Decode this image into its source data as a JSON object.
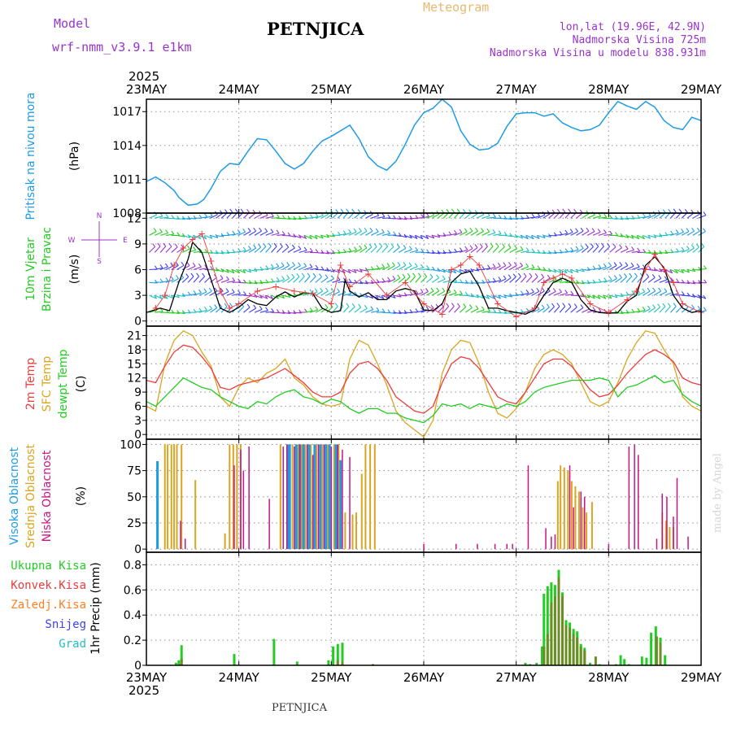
{
  "header": {
    "model_label": "Model",
    "model_name": "wrf-nmm_v3.9.1  e1km",
    "location": "PETNJICA",
    "product": "Meteogram",
    "coords": "lon,lat (19.96E, 42.9N)",
    "elevation": "Nadmorska Visina 725m",
    "model_elevation": "Nadmorska Visina u modelu 838.931m",
    "year": "2025"
  },
  "footer": {
    "location": "PETNJICA",
    "credit": "made by Angel"
  },
  "colors": {
    "pressure": "#1e9be6",
    "temp2m": "#ee3b3b",
    "sfc_temp": "#daa520",
    "dewpt": "#22cc22",
    "high_cloud": "#1e9be6",
    "mid_cloud": "#daa520",
    "low_cloud": "#c71585",
    "total_precip": "#22cc22",
    "conv_precip": "#ee3b3b",
    "freezing_precip": "#ff7f24",
    "snow": "#4040ee",
    "hail": "#20c0c0",
    "title_purple": "#9933cc",
    "meteogram_orange": "#e8b86d"
  },
  "time_axis": {
    "days": [
      "23MAY",
      "24MAY",
      "25MAY",
      "26MAY",
      "27MAY",
      "28MAY",
      "29MAY"
    ]
  },
  "panels": {
    "pressure": {
      "labels": [
        "Pritisak na nivou mora",
        "(hPa)"
      ],
      "yticks": [
        1008,
        1011,
        1014,
        1017
      ],
      "ylim": [
        1008,
        1018.1
      ]
    },
    "wind": {
      "labels": [
        "10m Vjetar",
        "Brzina i Pravac",
        "(m/s)"
      ],
      "compass": [
        "N",
        "S",
        "W",
        "E"
      ],
      "yticks": [
        0,
        3,
        6,
        9,
        12
      ],
      "ylim": [
        -0.6,
        12.6
      ]
    },
    "temperature": {
      "labels": [
        "2m Temp",
        "SFC Temp",
        "dewpt Temp",
        "(C)"
      ],
      "yticks": [
        0,
        3,
        6,
        9,
        12,
        15,
        18,
        21
      ],
      "ylim": [
        -1,
        23
      ]
    },
    "cloud": {
      "labels": [
        "Visoka Oblacnost",
        "Srednja Oblacnost",
        "Niska Oblacnost",
        "(%)"
      ],
      "yticks": [
        0,
        25,
        50,
        75,
        100
      ],
      "ylim": [
        -3,
        105
      ]
    },
    "precip": {
      "labels": [
        "1hr Precip (mm)"
      ],
      "legend": [
        "Ukupna Kisa",
        "Konvek.Kisa",
        "Zaledj.Kisa",
        "Snijeg",
        "Grad"
      ],
      "yticks": [
        0,
        0.2,
        0.4,
        0.6,
        0.8
      ],
      "ylim": [
        0,
        0.9
      ]
    }
  },
  "chart_data": {
    "type": "line",
    "title": "PETNJICA",
    "x_range_days": [
      0,
      6
    ],
    "pressure": {
      "name": "Pritisak na nivou mora",
      "x": [
        0,
        0.1,
        0.2,
        0.3,
        0.35,
        0.45,
        0.55,
        0.62,
        0.7,
        0.8,
        0.9,
        1.0,
        1.1,
        1.2,
        1.3,
        1.4,
        1.5,
        1.6,
        1.7,
        1.8,
        1.9,
        2.0,
        2.1,
        2.2,
        2.3,
        2.4,
        2.5,
        2.6,
        2.7,
        2.8,
        2.9,
        3.0,
        3.1,
        3.2,
        3.3,
        3.4,
        3.5,
        3.6,
        3.7,
        3.8,
        3.9,
        4.0,
        4.1,
        4.2,
        4.3,
        4.4,
        4.5,
        4.6,
        4.7,
        4.8,
        4.9,
        5.0,
        5.1,
        5.2,
        5.3,
        5.4,
        5.5,
        5.6,
        5.7,
        5.8,
        5.9,
        6.0
      ],
      "y": [
        1010.8,
        1011.2,
        1010.7,
        1010.0,
        1009.4,
        1008.7,
        1008.8,
        1009.2,
        1010.2,
        1011.7,
        1012.4,
        1012.3,
        1013.5,
        1014.6,
        1014.5,
        1013.5,
        1012.4,
        1011.9,
        1012.4,
        1013.5,
        1014.4,
        1014.8,
        1015.3,
        1015.8,
        1014.6,
        1013.0,
        1012.2,
        1011.8,
        1012.6,
        1014.1,
        1015.8,
        1016.9,
        1017.3,
        1018.1,
        1017.4,
        1015.3,
        1014.1,
        1013.6,
        1013.7,
        1014.2,
        1015.7,
        1016.8,
        1016.9,
        1016.9,
        1016.6,
        1016.8,
        1016.0,
        1015.6,
        1015.3,
        1015.4,
        1015.8,
        1016.9,
        1017.9,
        1017.5,
        1017.2,
        1017.9,
        1017.4,
        1016.2,
        1015.6,
        1015.4,
        1016.5,
        1016.2
      ]
    },
    "wind_speed": {
      "x": [
        0,
        0.15,
        0.25,
        0.35,
        0.45,
        0.5,
        0.6,
        0.7,
        0.8,
        0.9,
        1.0,
        1.1,
        1.2,
        1.3,
        1.4,
        1.5,
        1.6,
        1.7,
        1.8,
        1.9,
        2.0,
        2.1,
        2.15,
        2.2,
        2.3,
        2.4,
        2.5,
        2.6,
        2.7,
        2.8,
        2.9,
        3.0,
        3.1,
        3.2,
        3.3,
        3.4,
        3.5,
        3.6,
        3.7,
        3.8,
        3.9,
        4.0,
        4.1,
        4.2,
        4.3,
        4.4,
        4.5,
        4.6,
        4.7,
        4.8,
        4.9,
        5.0,
        5.1,
        5.2,
        5.3,
        5.4,
        5.5,
        5.6,
        5.7,
        5.8,
        5.9,
        6.0
      ],
      "y": [
        1.0,
        1.5,
        1.2,
        4.5,
        7.2,
        9.2,
        8.0,
        4.8,
        1.5,
        1.0,
        1.6,
        2.5,
        2.0,
        1.8,
        2.8,
        3.4,
        2.8,
        3.3,
        3.2,
        1.5,
        1.0,
        1.2,
        4.8,
        3.5,
        2.8,
        3.3,
        2.5,
        2.5,
        3.5,
        3.8,
        3.5,
        1.3,
        1.2,
        2.0,
        4.5,
        5.5,
        5.8,
        4.0,
        1.5,
        1.5,
        1.2,
        1.0,
        0.8,
        1.3,
        3.0,
        4.5,
        5.0,
        4.5,
        2.5,
        1.3,
        1.0,
        0.9,
        1.0,
        2.3,
        3.0,
        6.5,
        7.5,
        6.2,
        3.0,
        1.5,
        1.0,
        1.2
      ]
    },
    "wind_gust": {
      "x": [
        0.1,
        0.2,
        0.3,
        0.4,
        0.5,
        0.6,
        0.7,
        0.8,
        0.9,
        1.0,
        1.2,
        1.4,
        1.6,
        1.8,
        2.0,
        2.1,
        2.2,
        2.4,
        2.6,
        2.8,
        3.0,
        3.2,
        3.3,
        3.4,
        3.5,
        3.6,
        3.8,
        4.0,
        4.2,
        4.3,
        4.4,
        4.5,
        4.6,
        4.8,
        5.0,
        5.2,
        5.3,
        5.4,
        5.5,
        5.6,
        5.7,
        5.8,
        6.0
      ],
      "y": [
        1.5,
        3.0,
        6.5,
        8.5,
        9.5,
        10.2,
        7.0,
        3.5,
        1.5,
        2.0,
        3.5,
        4.0,
        3.5,
        3.2,
        2.0,
        6.5,
        4.0,
        5.5,
        3.0,
        4.5,
        2.0,
        0.8,
        6.0,
        6.5,
        7.5,
        6.5,
        2.0,
        0.5,
        1.5,
        4.5,
        5.0,
        5.5,
        5.0,
        2.0,
        1.0,
        2.5,
        3.5,
        6.0,
        7.8,
        6.0,
        4.5,
        2.0,
        1.0
      ]
    },
    "temp_2m": {
      "name": "2m Temp",
      "x": [
        0,
        0.1,
        0.2,
        0.3,
        0.4,
        0.5,
        0.6,
        0.7,
        0.8,
        0.9,
        1.0,
        1.1,
        1.2,
        1.3,
        1.4,
        1.5,
        1.6,
        1.7,
        1.8,
        1.9,
        2.0,
        2.1,
        2.2,
        2.3,
        2.4,
        2.5,
        2.6,
        2.7,
        2.8,
        2.9,
        3.0,
        3.1,
        3.2,
        3.3,
        3.4,
        3.5,
        3.6,
        3.7,
        3.8,
        3.9,
        4.0,
        4.1,
        4.2,
        4.3,
        4.4,
        4.5,
        4.6,
        4.7,
        4.8,
        4.9,
        5.0,
        5.1,
        5.2,
        5.3,
        5.4,
        5.5,
        5.6,
        5.7,
        5.8,
        5.9,
        6.0
      ],
      "y": [
        11.5,
        11.0,
        14.5,
        17.5,
        19.0,
        18.5,
        16.5,
        14.0,
        10.0,
        9.5,
        10.5,
        11.0,
        11.5,
        12.0,
        13.0,
        14.0,
        12.5,
        11.0,
        9.0,
        8.0,
        8.0,
        9.0,
        13.0,
        15.0,
        15.5,
        14.0,
        11.5,
        8.0,
        6.5,
        5.0,
        4.5,
        6.0,
        11.0,
        15.0,
        16.5,
        16.0,
        14.0,
        11.0,
        8.0,
        7.0,
        6.5,
        9.0,
        12.0,
        15.0,
        16.0,
        16.0,
        14.5,
        12.0,
        9.5,
        8.0,
        8.5,
        10.5,
        13.0,
        15.0,
        17.0,
        18.0,
        17.0,
        15.5,
        12.0,
        11.0,
        10.5
      ]
    },
    "sfc_temp": {
      "name": "SFC Temp",
      "x": [
        0,
        0.1,
        0.2,
        0.3,
        0.4,
        0.5,
        0.6,
        0.7,
        0.8,
        0.9,
        1.0,
        1.1,
        1.2,
        1.3,
        1.4,
        1.5,
        1.6,
        1.7,
        1.8,
        1.9,
        2.0,
        2.1,
        2.2,
        2.3,
        2.4,
        2.5,
        2.6,
        2.7,
        2.8,
        2.9,
        3.0,
        3.1,
        3.2,
        3.3,
        3.4,
        3.5,
        3.6,
        3.7,
        3.8,
        3.9,
        4.0,
        4.1,
        4.2,
        4.3,
        4.4,
        4.5,
        4.6,
        4.7,
        4.8,
        4.9,
        5.0,
        5.1,
        5.2,
        5.3,
        5.4,
        5.5,
        5.6,
        5.7,
        5.8,
        5.9,
        6.0
      ],
      "y": [
        6.0,
        5.0,
        15.0,
        20.0,
        22.0,
        21.0,
        17.5,
        14.5,
        8.0,
        6.0,
        10.0,
        12.0,
        11.0,
        13.0,
        14.0,
        16.0,
        12.0,
        10.5,
        8.0,
        6.5,
        6.0,
        6.5,
        16.0,
        20.0,
        19.0,
        15.0,
        10.5,
        5.0,
        2.5,
        1.0,
        -0.5,
        3.0,
        13.0,
        18.0,
        20.0,
        19.5,
        15.0,
        9.0,
        4.5,
        3.5,
        5.5,
        9.0,
        14.0,
        17.0,
        18.0,
        17.0,
        15.0,
        11.0,
        7.0,
        6.0,
        7.0,
        11.0,
        16.0,
        19.5,
        22.0,
        21.5,
        18.0,
        15.0,
        8.0,
        6.0,
        5.0
      ]
    },
    "dewpoint": {
      "name": "dewpt Temp",
      "x": [
        0,
        0.1,
        0.2,
        0.3,
        0.4,
        0.5,
        0.6,
        0.7,
        0.8,
        0.9,
        1.0,
        1.1,
        1.2,
        1.3,
        1.4,
        1.5,
        1.6,
        1.7,
        1.8,
        1.9,
        2.0,
        2.1,
        2.2,
        2.3,
        2.4,
        2.5,
        2.6,
        2.7,
        2.8,
        2.9,
        3.0,
        3.1,
        3.2,
        3.3,
        3.4,
        3.5,
        3.6,
        3.7,
        3.8,
        3.9,
        4.0,
        4.1,
        4.2,
        4.3,
        4.4,
        4.5,
        4.6,
        4.7,
        4.8,
        4.9,
        5.0,
        5.1,
        5.2,
        5.3,
        5.4,
        5.5,
        5.6,
        5.7,
        5.8,
        5.9,
        6.0
      ],
      "y": [
        7.0,
        6.0,
        8.0,
        10.0,
        12.0,
        11.0,
        10.0,
        9.5,
        8.0,
        7.0,
        6.0,
        5.5,
        7.0,
        6.5,
        8.0,
        9.0,
        9.5,
        8.0,
        7.5,
        6.5,
        7.5,
        7.0,
        5.5,
        4.5,
        5.5,
        5.5,
        4.5,
        4.5,
        3.5,
        3.0,
        2.5,
        4.0,
        6.5,
        6.0,
        6.5,
        5.5,
        6.5,
        6.0,
        5.5,
        6.5,
        6.0,
        7.0,
        9.0,
        10.0,
        10.5,
        11.0,
        11.5,
        11.5,
        11.5,
        12.0,
        11.5,
        8.0,
        10.0,
        10.5,
        11.5,
        12.5,
        11.0,
        11.5,
        8.5,
        7.0,
        6.0
      ]
    },
    "cloud_high": {
      "name": "Visoka Oblacnost",
      "x": [
        0.12,
        1.53,
        1.55,
        1.62,
        1.66,
        1.7,
        1.76,
        1.82,
        1.88,
        1.94,
        1.98,
        2.05,
        2.1
      ],
      "y": [
        84,
        100,
        100,
        100,
        100,
        100,
        100,
        100,
        100,
        100,
        100,
        100,
        85
      ]
    },
    "cloud_mid": {
      "name": "Srednja Oblacnost",
      "x": [
        0.2,
        0.23,
        0.27,
        0.3,
        0.33,
        0.38,
        0.53,
        0.85,
        0.9,
        0.94,
        0.98,
        1.02,
        1.45,
        1.58,
        1.64,
        1.68,
        1.72,
        1.78,
        1.84,
        1.9,
        1.96,
        2.03,
        2.08,
        2.15,
        2.23,
        2.27,
        2.33,
        2.37,
        2.42,
        2.47,
        4.45,
        4.48,
        4.52,
        4.56,
        4.6,
        4.64,
        4.68,
        4.72,
        4.76,
        4.82,
        5.58,
        5.62,
        5.66,
        5.7
      ],
      "y": [
        100,
        100,
        100,
        100,
        100,
        100,
        66,
        15,
        100,
        100,
        100,
        100,
        100,
        100,
        100,
        100,
        100,
        100,
        100,
        100,
        100,
        100,
        100,
        35,
        33,
        35,
        72,
        100,
        100,
        100,
        65,
        80,
        78,
        75,
        65,
        60,
        55,
        40,
        35,
        45,
        35,
        27,
        21,
        21
      ]
    },
    "cloud_low": {
      "name": "Niska Oblacnost",
      "x": [
        0.37,
        0.42,
        0.95,
        1.02,
        1.05,
        1.11,
        1.33,
        1.48,
        1.52,
        1.6,
        1.66,
        1.74,
        1.8,
        1.86,
        1.92,
        2.0,
        2.07,
        2.12,
        2.2,
        3.0,
        3.35,
        3.58,
        3.77,
        3.9,
        3.96,
        4.13,
        4.32,
        4.38,
        4.42,
        4.58,
        4.62,
        4.7,
        4.74,
        5.0,
        5.22,
        5.28,
        5.32,
        5.52,
        5.58,
        5.63,
        5.7,
        5.74,
        5.86
      ],
      "y": [
        27,
        10,
        80,
        95,
        75,
        98,
        48,
        98,
        100,
        98,
        100,
        100,
        90,
        100,
        100,
        98,
        100,
        95,
        88,
        5,
        5,
        5,
        5,
        5,
        5,
        80,
        20,
        12,
        14,
        80,
        40,
        55,
        50,
        5,
        98,
        100,
        90,
        10,
        53,
        50,
        31,
        68,
        12
      ]
    },
    "precip_total": {
      "name": "Ukupna Kisa",
      "x": [
        0.32,
        0.35,
        0.38,
        0.95,
        1.38,
        1.63,
        1.97,
        2.02,
        2.07,
        2.12,
        4.1,
        4.15,
        4.22,
        4.28,
        4.3,
        4.34,
        4.38,
        4.42,
        4.46,
        4.5,
        4.54,
        4.58,
        4.62,
        4.66,
        4.7,
        4.74,
        4.8,
        4.9,
        5.08,
        5.13,
        5.17,
        5.22,
        5.36,
        5.41,
        5.46,
        5.51,
        5.56,
        5.61
      ],
      "y": [
        0.02,
        0.04,
        0.16,
        0.09,
        0.21,
        0.03,
        0.04,
        0.15,
        0.17,
        0.18,
        0.02,
        0.01,
        0.02,
        0.15,
        0.57,
        0.63,
        0.66,
        0.64,
        0.76,
        0.58,
        0.36,
        0.34,
        0.29,
        0.27,
        0.17,
        0.14,
        0.02,
        0.01,
        0.01,
        0.08,
        0.05,
        0.01,
        0.07,
        0.06,
        0.26,
        0.31,
        0.22,
        0.08
      ]
    },
    "precip_convective": {
      "name": "Konvek.Kisa",
      "x": [
        0.36,
        0.38,
        2.07,
        2.12,
        2.45,
        4.3,
        4.34,
        4.38,
        4.42,
        4.46,
        4.5,
        4.54,
        4.58,
        4.62,
        4.66,
        4.7,
        4.74,
        4.86,
        5.52,
        5.56
      ],
      "y": [
        0.01,
        0.05,
        0.04,
        0.03,
        0.01,
        0.15,
        0.25,
        0.5,
        0.55,
        0.7,
        0.55,
        0.32,
        0.3,
        0.25,
        0.22,
        0.15,
        0.12,
        0.07,
        0.23,
        0.18
      ]
    }
  }
}
